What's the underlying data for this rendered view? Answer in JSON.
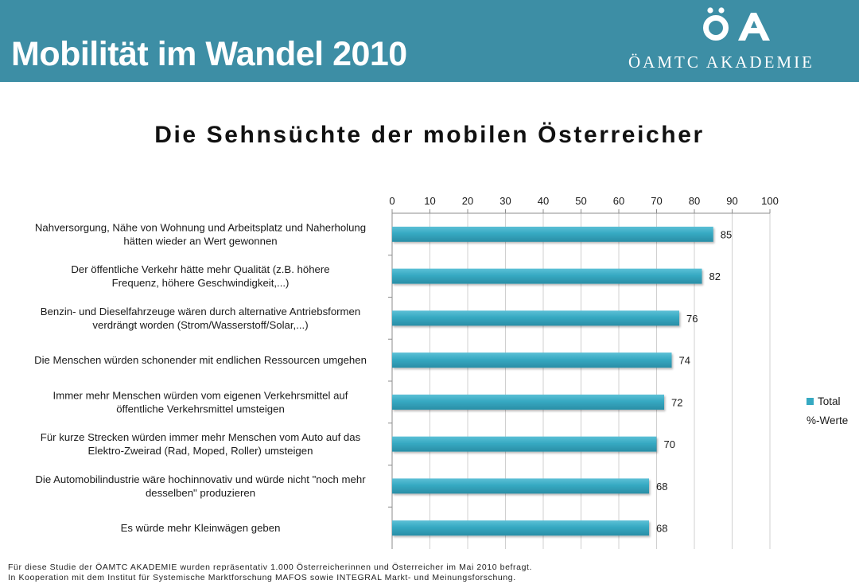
{
  "header": {
    "title": "Mobilität im Wandel 2010",
    "logo_mark": "ÖA",
    "logo_text": "ÖAMTC AKADEMIE",
    "background_color": "#3d8ea5"
  },
  "chart_data": {
    "type": "bar",
    "orientation": "horizontal",
    "title": "Die Sehnsüchte der mobilen Österreicher",
    "categories": [
      [
        "Nahversorgung, Nähe von Wohnung und Arbeitsplatz und Naherholung",
        "hätten wieder an Wert gewonnen"
      ],
      [
        "Der öffentliche Verkehr hätte mehr Qualität (z.B. höhere",
        "Frequenz, höhere Geschwindigkeit,...)"
      ],
      [
        "Benzin- und Dieselfahrzeuge wären durch alternative Antriebsformen",
        "verdrängt worden (Strom/Wasserstoff/Solar,...)"
      ],
      [
        "Die Menschen würden schonender mit endlichen Ressourcen umgehen"
      ],
      [
        "Immer mehr Menschen würden vom eigenen Verkehrsmittel auf",
        "öffentliche Verkehrsmittel umsteigen"
      ],
      [
        "Für kurze Strecken würden immer mehr Menschen vom Auto auf das",
        "Elektro-Zweirad (Rad, Moped, Roller) umsteigen"
      ],
      [
        "Die Automobilindustrie wäre hochinnovativ und würde nicht \"noch mehr",
        "desselben\" produzieren"
      ],
      [
        "Es würde mehr Kleinwägen geben"
      ]
    ],
    "series": [
      {
        "name": "Total",
        "values": [
          85,
          82,
          76,
          74,
          72,
          70,
          68,
          68
        ],
        "color": "#36a9c2"
      }
    ],
    "xlim": [
      0,
      100
    ],
    "ticks": [
      0,
      10,
      20,
      30,
      40,
      50,
      60,
      70,
      80,
      90,
      100
    ],
    "grid": true,
    "axis_position": "top",
    "legend": {
      "placement": "right",
      "entries": [
        "Total"
      ],
      "note": "%-Werte"
    }
  },
  "footnote": [
    "Für diese Studie der ÖAMTC AKADEMIE wurden repräsentativ 1.000 Österreicherinnen und Österreicher im Mai 2010 befragt.",
    "In Kooperation mit dem Institut für Systemische Marktforschung MAFOS sowie INTEGRAL Markt- und Meinungsforschung."
  ]
}
